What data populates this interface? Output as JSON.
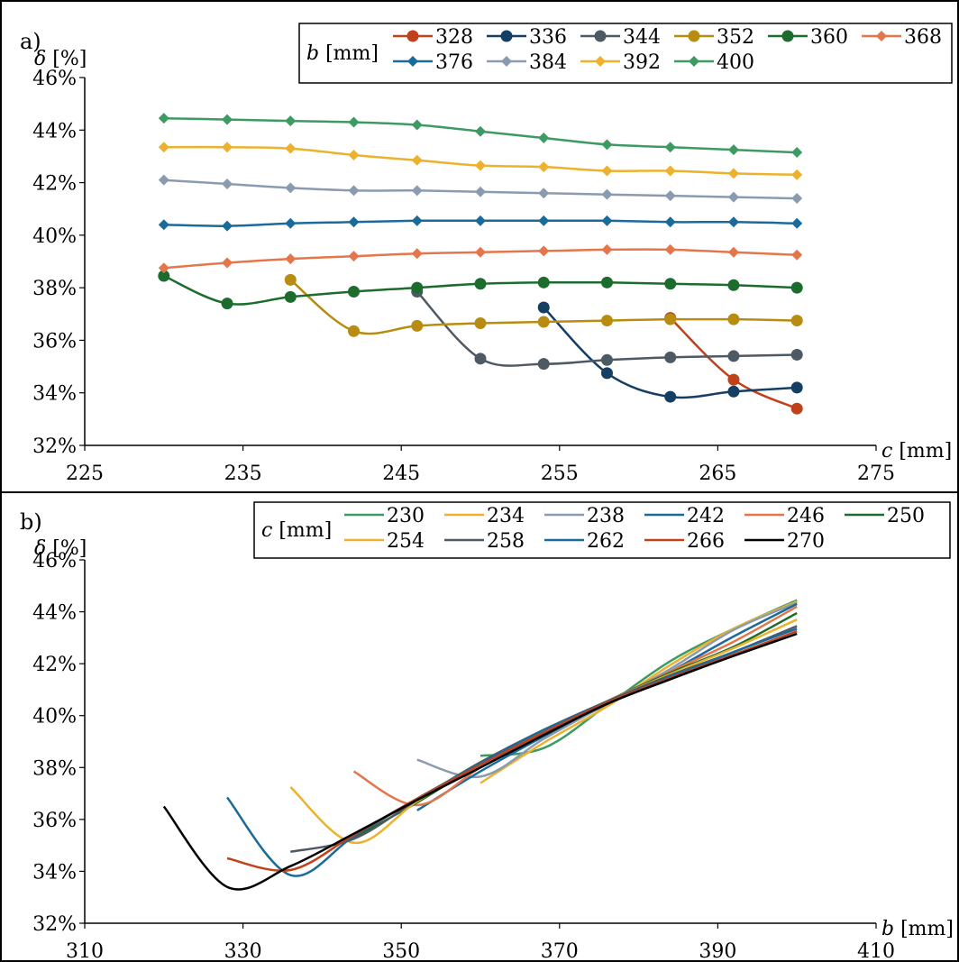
{
  "chart_data": [
    {
      "panel_label": "a)",
      "type": "line",
      "xlabel": "c [mm]",
      "ylabel": "δ [%]",
      "legend_title": "b [mm]",
      "legend_position": "top-right",
      "marker": "mixed",
      "xlim": [
        225,
        275
      ],
      "ylim": [
        32,
        46
      ],
      "xticks": [
        225,
        235,
        245,
        255,
        265,
        275
      ],
      "yticks": [
        32,
        34,
        36,
        38,
        40,
        42,
        44,
        46
      ],
      "grid": false,
      "series": [
        {
          "name": "328",
          "color": "#c0421b",
          "marker": "circle",
          "x": [
            262,
            266,
            270
          ],
          "y": [
            36.85,
            34.5,
            33.4
          ]
        },
        {
          "name": "336",
          "color": "#153e64",
          "marker": "circle",
          "x": [
            254,
            258,
            262,
            266,
            270
          ],
          "y": [
            37.25,
            34.75,
            33.85,
            34.05,
            34.2
          ]
        },
        {
          "name": "344",
          "color": "#4d5963",
          "marker": "circle",
          "x": [
            246,
            250,
            254,
            258,
            262,
            266,
            270
          ],
          "y": [
            37.85,
            35.3,
            35.1,
            35.25,
            35.35,
            35.4,
            35.45
          ]
        },
        {
          "name": "352",
          "color": "#b78c10",
          "marker": "circle",
          "x": [
            238,
            242,
            246,
            250,
            254,
            258,
            262,
            266,
            270
          ],
          "y": [
            38.3,
            36.35,
            36.55,
            36.65,
            36.7,
            36.75,
            36.8,
            36.8,
            36.75
          ]
        },
        {
          "name": "360",
          "color": "#1c6d2d",
          "marker": "circle",
          "x": [
            230,
            234,
            238,
            242,
            246,
            250,
            254,
            258,
            262,
            266,
            270
          ],
          "y": [
            38.45,
            37.4,
            37.65,
            37.85,
            38.0,
            38.15,
            38.2,
            38.2,
            38.15,
            38.1,
            38.0
          ]
        },
        {
          "name": "368",
          "color": "#e5754a",
          "marker": "diamond",
          "x": [
            230,
            234,
            238,
            242,
            246,
            250,
            254,
            258,
            262,
            266,
            270
          ],
          "y": [
            38.75,
            38.95,
            39.1,
            39.2,
            39.3,
            39.35,
            39.4,
            39.45,
            39.45,
            39.35,
            39.25
          ]
        },
        {
          "name": "376",
          "color": "#1b6b9a",
          "marker": "diamond",
          "x": [
            230,
            234,
            238,
            242,
            246,
            250,
            254,
            258,
            262,
            266,
            270
          ],
          "y": [
            40.4,
            40.35,
            40.45,
            40.5,
            40.55,
            40.55,
            40.55,
            40.55,
            40.5,
            40.5,
            40.45
          ]
        },
        {
          "name": "384",
          "color": "#8a9bb0",
          "marker": "diamond",
          "x": [
            230,
            234,
            238,
            242,
            246,
            250,
            254,
            258,
            262,
            266,
            270
          ],
          "y": [
            42.1,
            41.95,
            41.8,
            41.7,
            41.7,
            41.65,
            41.6,
            41.55,
            41.5,
            41.45,
            41.4
          ]
        },
        {
          "name": "392",
          "color": "#ecb22e",
          "marker": "diamond",
          "x": [
            230,
            234,
            238,
            242,
            246,
            250,
            254,
            258,
            262,
            266,
            270
          ],
          "y": [
            43.35,
            43.35,
            43.3,
            43.05,
            42.85,
            42.65,
            42.6,
            42.45,
            42.45,
            42.35,
            42.3
          ]
        },
        {
          "name": "400",
          "color": "#3e9a63",
          "marker": "diamond",
          "x": [
            230,
            234,
            238,
            242,
            246,
            250,
            254,
            258,
            262,
            266,
            270
          ],
          "y": [
            44.45,
            44.4,
            44.35,
            44.3,
            44.2,
            43.95,
            43.7,
            43.45,
            43.35,
            43.25,
            43.15
          ]
        }
      ]
    },
    {
      "panel_label": "b)",
      "type": "line",
      "xlabel": "b [mm]",
      "ylabel": "δ [%]",
      "legend_title": "c [mm]",
      "legend_position": "top-right",
      "marker": "none",
      "xlim": [
        310,
        410
      ],
      "ylim": [
        32,
        46
      ],
      "xticks": [
        310,
        330,
        350,
        370,
        390,
        410
      ],
      "yticks": [
        32,
        34,
        36,
        38,
        40,
        42,
        44,
        46
      ],
      "grid": false,
      "series": [
        {
          "name": "230",
          "color": "#3e9a63",
          "x": [
            360,
            368,
            376,
            384,
            392,
            400
          ],
          "y": [
            38.45,
            38.75,
            40.4,
            42.1,
            43.35,
            44.45
          ]
        },
        {
          "name": "234",
          "color": "#ecb22e",
          "x": [
            360,
            368,
            376,
            384,
            392,
            400
          ],
          "y": [
            37.4,
            38.95,
            40.35,
            41.95,
            43.35,
            44.4
          ]
        },
        {
          "name": "238",
          "color": "#8a9bb0",
          "x": [
            352,
            360,
            368,
            376,
            384,
            392,
            400
          ],
          "y": [
            38.3,
            37.65,
            39.1,
            40.45,
            41.8,
            43.3,
            44.35
          ]
        },
        {
          "name": "242",
          "color": "#1b6b9a",
          "x": [
            352,
            360,
            368,
            376,
            384,
            392,
            400
          ],
          "y": [
            36.35,
            37.85,
            39.2,
            40.5,
            41.7,
            43.05,
            44.3
          ]
        },
        {
          "name": "246",
          "color": "#e5754a",
          "x": [
            344,
            352,
            360,
            368,
            376,
            384,
            392,
            400
          ],
          "y": [
            37.85,
            36.55,
            38.0,
            39.3,
            40.55,
            41.7,
            42.85,
            44.2
          ]
        },
        {
          "name": "250",
          "color": "#1c6d2d",
          "x": [
            344,
            352,
            360,
            368,
            376,
            384,
            392,
            400
          ],
          "y": [
            35.3,
            36.65,
            38.15,
            39.35,
            40.55,
            41.65,
            42.65,
            43.95
          ]
        },
        {
          "name": "254",
          "color": "#ecb22e",
          "x": [
            336,
            344,
            352,
            360,
            368,
            376,
            384,
            392,
            400
          ],
          "y": [
            37.25,
            35.1,
            36.7,
            38.2,
            39.4,
            40.55,
            41.6,
            42.6,
            43.7
          ]
        },
        {
          "name": "258",
          "color": "#4d5963",
          "x": [
            336,
            344,
            352,
            360,
            368,
            376,
            384,
            392,
            400
          ],
          "y": [
            34.75,
            35.25,
            36.75,
            38.2,
            39.45,
            40.55,
            41.55,
            42.45,
            43.45
          ]
        },
        {
          "name": "262",
          "color": "#1b6b9a",
          "x": [
            328,
            336,
            344,
            352,
            360,
            368,
            376,
            384,
            392,
            400
          ],
          "y": [
            36.85,
            33.85,
            35.35,
            36.8,
            38.15,
            39.45,
            40.5,
            41.5,
            42.45,
            43.35
          ]
        },
        {
          "name": "266",
          "color": "#c0421b",
          "x": [
            328,
            336,
            344,
            352,
            360,
            368,
            376,
            384,
            392,
            400
          ],
          "y": [
            34.5,
            34.05,
            35.4,
            36.8,
            38.1,
            39.35,
            40.5,
            41.45,
            42.35,
            43.25
          ]
        },
        {
          "name": "270",
          "color": "#000000",
          "x": [
            320,
            328,
            336,
            344,
            352,
            360,
            368,
            376,
            384,
            392,
            400
          ],
          "y": [
            36.5,
            33.4,
            34.2,
            35.45,
            36.75,
            38.0,
            39.25,
            40.45,
            41.4,
            42.3,
            43.15
          ]
        }
      ]
    }
  ]
}
